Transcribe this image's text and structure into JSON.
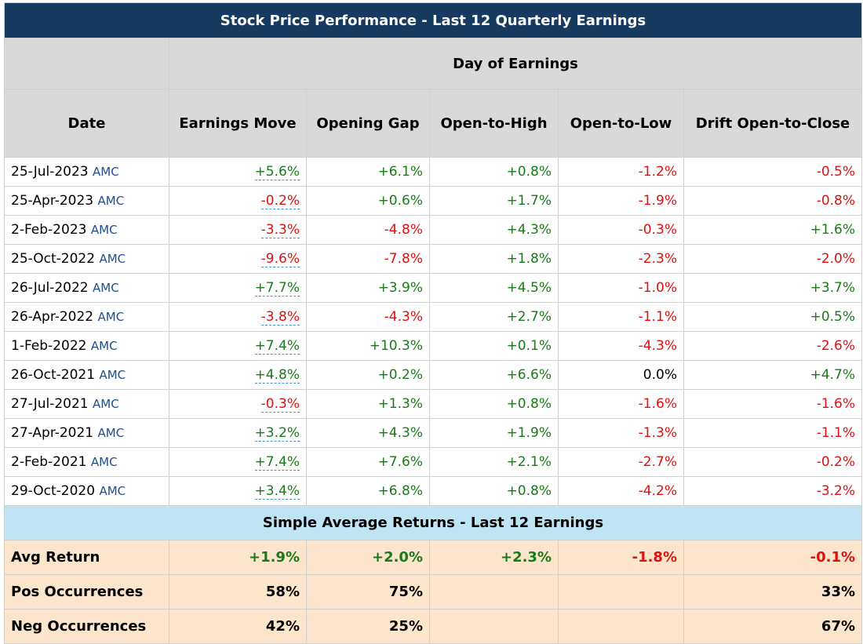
{
  "title": "Stock Price Performance - Last 12 Quarterly Earnings",
  "group_header": "Day of Earnings",
  "columns": [
    "Date",
    "Earnings Move",
    "Opening Gap",
    "Open-to-High",
    "Open-to-Low",
    "Drift Open-to-Close"
  ],
  "rows": [
    {
      "date": "25-Jul-2023",
      "timing": "AMC",
      "cells": [
        "+5.6%",
        "+6.1%",
        "+0.8%",
        "-1.2%",
        "-0.5%"
      ]
    },
    {
      "date": "25-Apr-2023",
      "timing": "AMC",
      "cells": [
        "-0.2%",
        "+0.6%",
        "+1.7%",
        "-1.9%",
        "-0.8%"
      ]
    },
    {
      "date": "2-Feb-2023",
      "timing": "AMC",
      "cells": [
        "-3.3%",
        "-4.8%",
        "+4.3%",
        "-0.3%",
        "+1.6%"
      ]
    },
    {
      "date": "25-Oct-2022",
      "timing": "AMC",
      "cells": [
        "-9.6%",
        "-7.8%",
        "+1.8%",
        "-2.3%",
        "-2.0%"
      ]
    },
    {
      "date": "26-Jul-2022",
      "timing": "AMC",
      "cells": [
        "+7.7%",
        "+3.9%",
        "+4.5%",
        "-1.0%",
        "+3.7%"
      ]
    },
    {
      "date": "26-Apr-2022",
      "timing": "AMC",
      "cells": [
        "-3.8%",
        "-4.3%",
        "+2.7%",
        "-1.1%",
        "+0.5%"
      ]
    },
    {
      "date": "1-Feb-2022",
      "timing": "AMC",
      "cells": [
        "+7.4%",
        "+10.3%",
        "+0.1%",
        "-4.3%",
        "-2.6%"
      ]
    },
    {
      "date": "26-Oct-2021",
      "timing": "AMC",
      "cells": [
        "+4.8%",
        "+0.2%",
        "+6.6%",
        "0.0%",
        "+4.7%"
      ]
    },
    {
      "date": "27-Jul-2021",
      "timing": "AMC",
      "cells": [
        "-0.3%",
        "+1.3%",
        "+0.8%",
        "-1.6%",
        "-1.6%"
      ]
    },
    {
      "date": "27-Apr-2021",
      "timing": "AMC",
      "cells": [
        "+3.2%",
        "+4.3%",
        "+1.9%",
        "-1.3%",
        "-1.1%"
      ]
    },
    {
      "date": "2-Feb-2021",
      "timing": "AMC",
      "cells": [
        "+7.4%",
        "+7.6%",
        "+2.1%",
        "-2.7%",
        "-0.2%"
      ]
    },
    {
      "date": "29-Oct-2020",
      "timing": "AMC",
      "cells": [
        "+3.4%",
        "+6.8%",
        "+0.8%",
        "-4.2%",
        "-3.2%"
      ]
    }
  ],
  "summary_title": "Simple Average Returns - Last 12 Earnings",
  "summary": [
    {
      "label": "Avg Return",
      "cells": [
        "+1.9%",
        "+2.0%",
        "+2.3%",
        "-1.8%",
        "-0.1%"
      ]
    },
    {
      "label": "Pos Occurrences",
      "cells": [
        "58%",
        "75%",
        null,
        null,
        "33%"
      ]
    },
    {
      "label": "Neg Occurrences",
      "cells": [
        "42%",
        "25%",
        null,
        null,
        "67%"
      ]
    }
  ]
}
